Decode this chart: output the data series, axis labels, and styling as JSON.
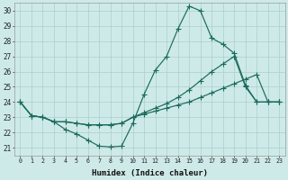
{
  "xlabel": "Humidex (Indice chaleur)",
  "bg_color": "#ceeae8",
  "grid_color": "#aacfcc",
  "line_color": "#1a6b5a",
  "xlim": [
    -0.5,
    23.5
  ],
  "ylim": [
    20.5,
    30.5
  ],
  "xticks": [
    0,
    1,
    2,
    3,
    4,
    5,
    6,
    7,
    8,
    9,
    10,
    11,
    12,
    13,
    14,
    15,
    16,
    17,
    18,
    19,
    20,
    21,
    22,
    23
  ],
  "yticks": [
    21,
    22,
    23,
    24,
    25,
    26,
    27,
    28,
    29,
    30
  ],
  "line1_x": [
    0,
    1,
    2,
    3,
    4,
    5,
    6,
    7,
    8,
    9,
    10,
    11,
    12,
    13,
    14,
    15,
    16,
    17,
    18,
    19,
    20,
    21,
    22,
    23
  ],
  "line1_y": [
    24.0,
    23.1,
    23.0,
    22.7,
    22.2,
    21.9,
    21.5,
    21.1,
    21.05,
    21.1,
    22.6,
    24.5,
    26.1,
    27.0,
    28.8,
    30.3,
    30.0,
    28.2,
    27.8,
    27.2,
    25.1,
    24.0,
    24.0,
    24.0
  ],
  "line2_x": [
    0,
    1,
    2,
    3,
    4,
    5,
    6,
    7,
    8,
    9,
    10,
    11,
    12,
    13,
    14,
    15,
    16,
    17,
    18,
    19,
    20,
    21,
    22,
    23
  ],
  "line2_y": [
    24.0,
    23.1,
    23.0,
    22.7,
    22.7,
    22.6,
    22.5,
    22.5,
    22.5,
    22.6,
    23.0,
    23.2,
    23.4,
    23.6,
    23.8,
    24.0,
    24.3,
    24.6,
    24.9,
    25.2,
    25.5,
    25.8,
    24.0,
    24.0
  ],
  "line3_x": [
    0,
    1,
    2,
    3,
    4,
    5,
    6,
    7,
    8,
    9,
    10,
    11,
    12,
    13,
    14,
    15,
    16,
    17,
    18,
    19,
    20,
    21,
    22,
    23
  ],
  "line3_y": [
    24.0,
    23.1,
    23.0,
    22.7,
    22.7,
    22.6,
    22.5,
    22.5,
    22.5,
    22.6,
    23.0,
    23.3,
    23.6,
    23.9,
    24.3,
    24.8,
    25.4,
    26.0,
    26.5,
    27.0,
    25.0,
    24.0,
    24.0,
    24.0
  ]
}
